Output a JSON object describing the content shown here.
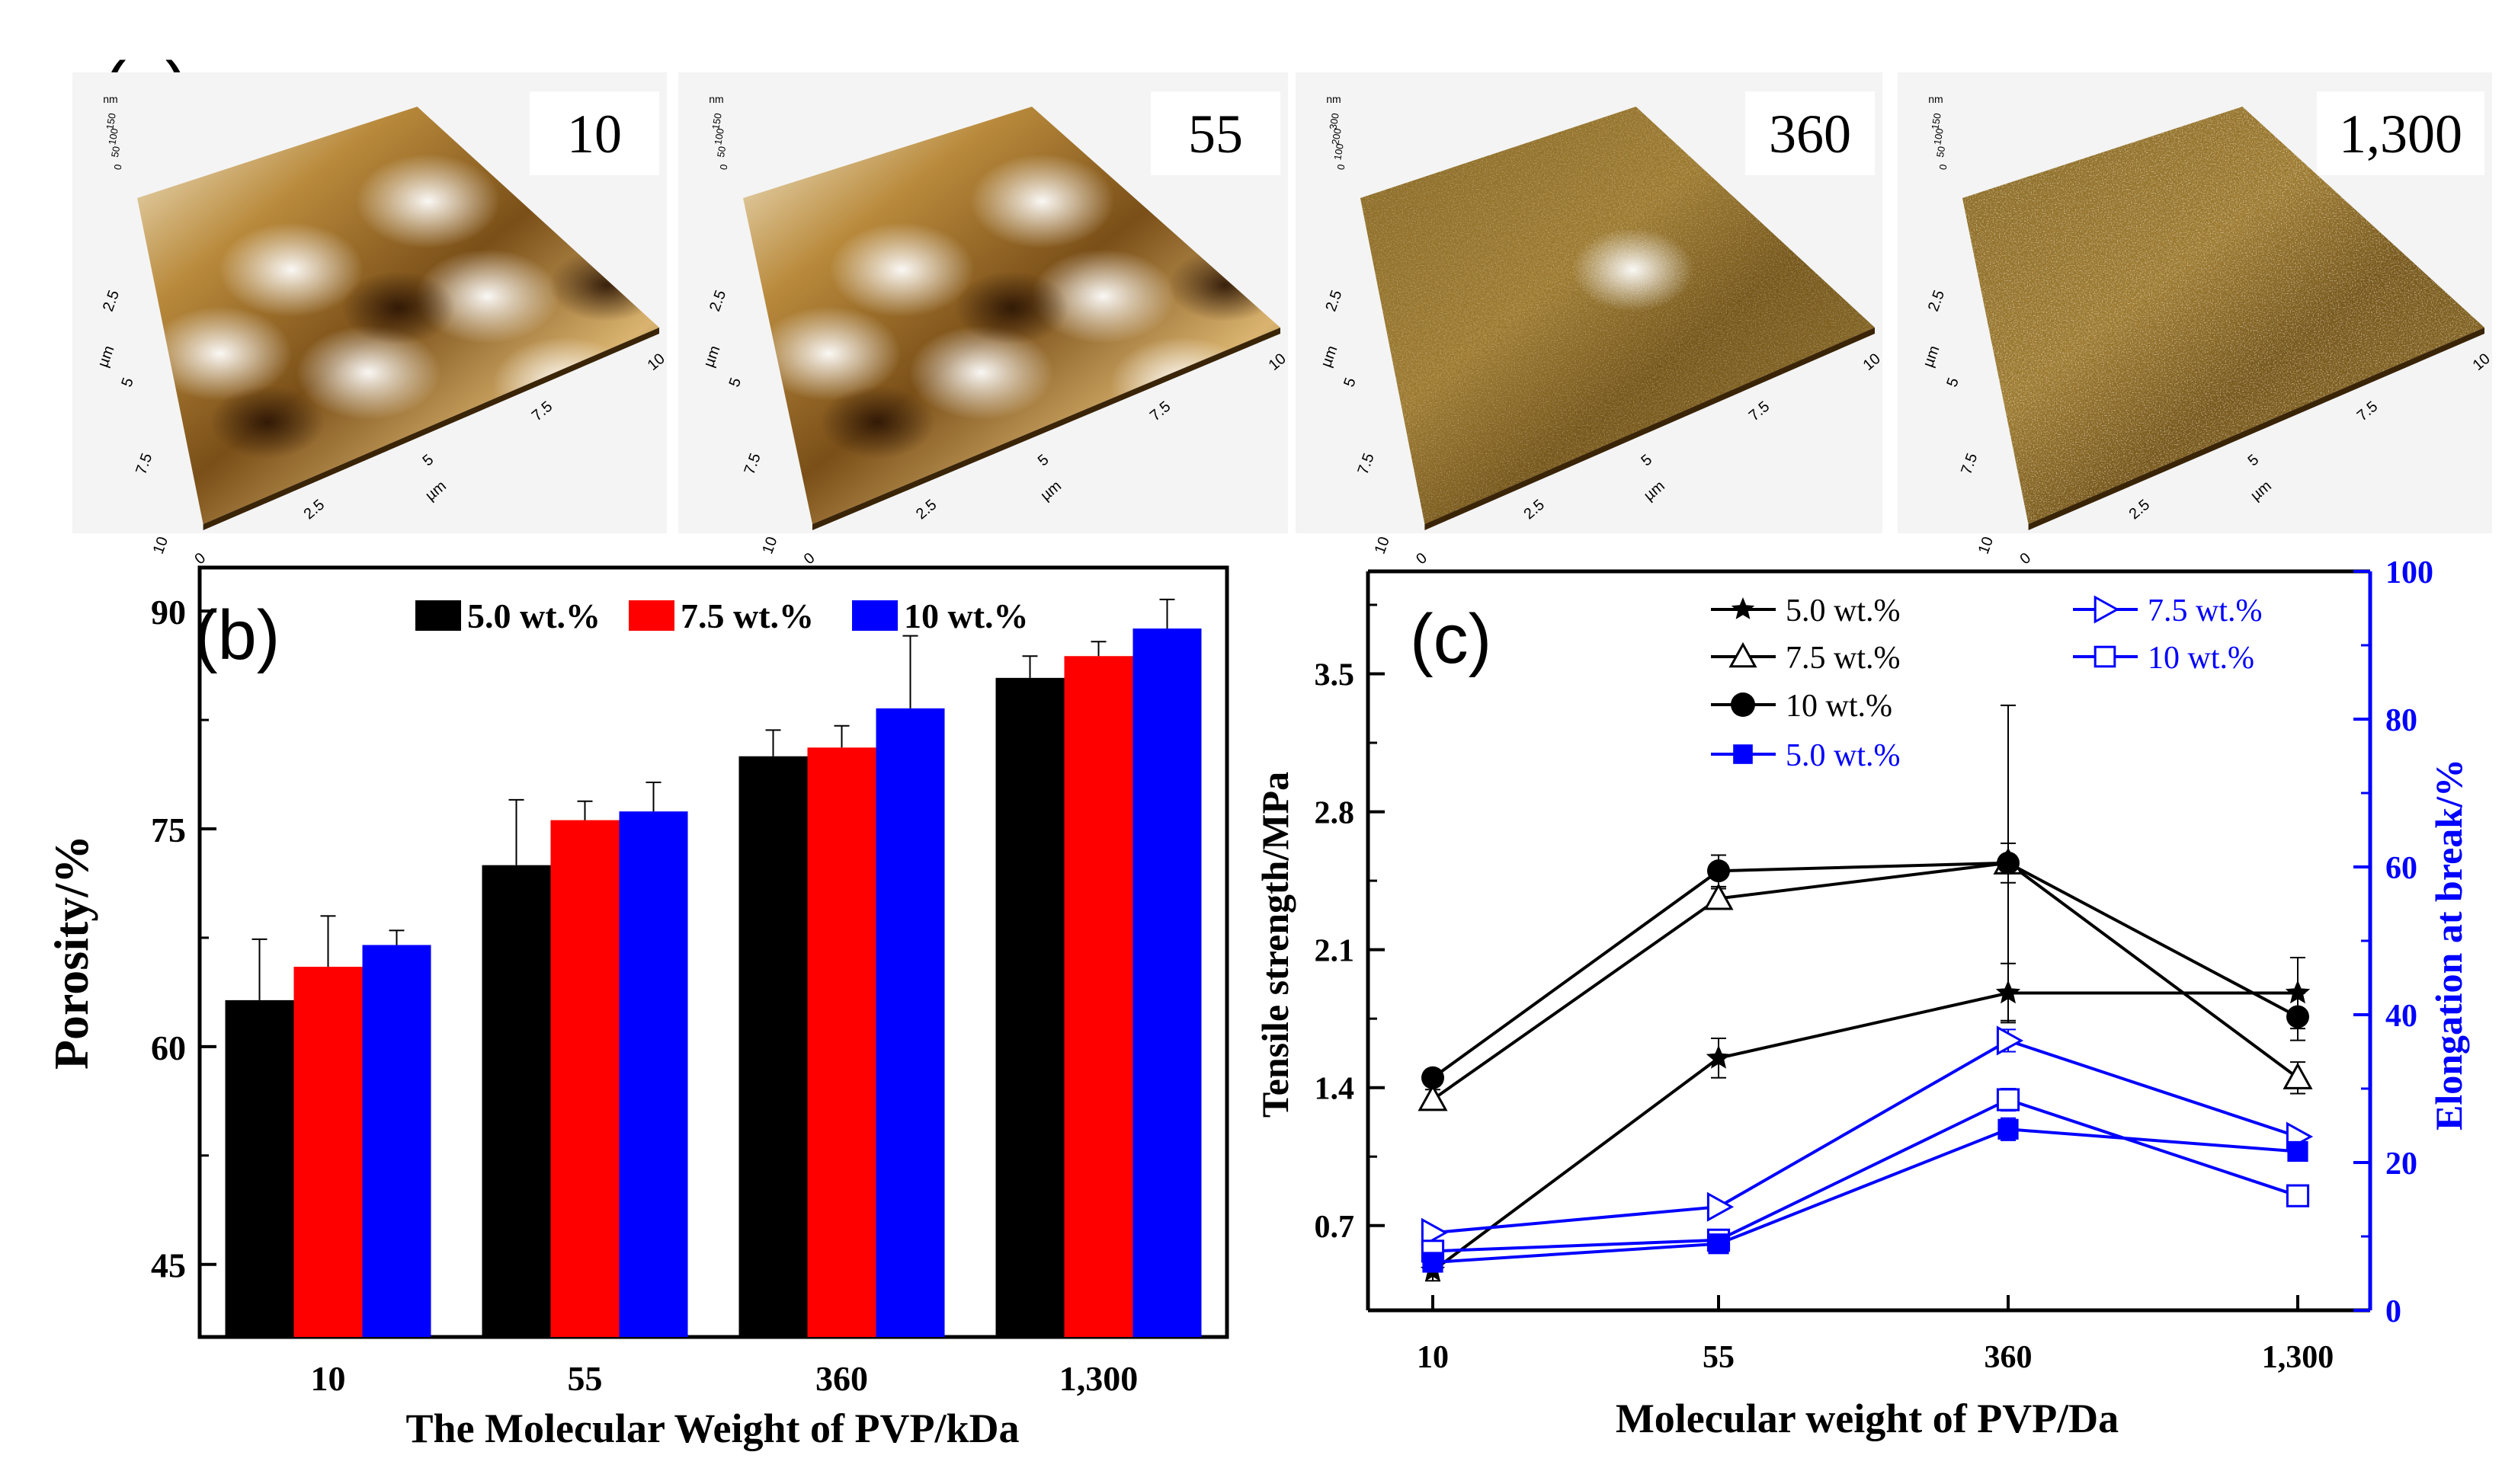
{
  "figure": {
    "panel_a": {
      "label": "(a)",
      "tiles": [
        {
          "mw_label": "10",
          "z_unit": "nm",
          "z_ticks": [
            "150",
            "100",
            "50",
            "0"
          ]
        },
        {
          "mw_label": "55",
          "z_unit": "nm",
          "z_ticks": [
            "150",
            "100",
            "50",
            "0"
          ]
        },
        {
          "mw_label": "360",
          "z_unit": "nm",
          "z_ticks": [
            "300",
            "200",
            "100",
            "0"
          ]
        },
        {
          "mw_label": "1,300",
          "z_unit": "nm",
          "z_ticks": [
            "150",
            "100",
            "50",
            "0"
          ]
        }
      ],
      "axis_unit": "µm",
      "axis_ticks": [
        "0",
        "2.5",
        "5",
        "7.5",
        "10"
      ]
    }
  },
  "chart_data": [
    {
      "panel": "(b)",
      "type": "bar",
      "title": "",
      "xlabel": "The Molecular Weight of PVP/kDa",
      "ylabel": "Porosity/%",
      "categories": [
        "10",
        "55",
        "360",
        "1,300"
      ],
      "ylim": [
        40,
        93
      ],
      "yticks": [
        45,
        60,
        75,
        90
      ],
      "legend_position": "top-center",
      "series": [
        {
          "name": "5.0 wt.%",
          "color": "#000000",
          "values": [
            63.2,
            72.5,
            80.0,
            85.4
          ],
          "errors": [
            4.2,
            4.5,
            1.8,
            1.5
          ]
        },
        {
          "name": "7.5 wt.%",
          "color": "#ff0000",
          "values": [
            65.5,
            75.6,
            80.6,
            86.9
          ],
          "errors": [
            3.5,
            1.3,
            1.5,
            1.0
          ]
        },
        {
          "name": "10 wt.%",
          "color": "#0000ff",
          "values": [
            67.0,
            76.2,
            83.3,
            88.8
          ],
          "errors": [
            1.0,
            2.0,
            5.0,
            2.0
          ]
        }
      ]
    },
    {
      "panel": "(c)",
      "type": "line",
      "title": "",
      "xlabel": "Molecular weight of PVP/Da",
      "ylabel": "Tensile strength/MPa",
      "y2label": "Elongation at break/%",
      "categories": [
        "10",
        "55",
        "360",
        "1,300"
      ],
      "ylim": [
        0.27,
        4.02
      ],
      "yticks": [
        0.7,
        1.4,
        2.1,
        2.8,
        3.5
      ],
      "y2lim": [
        0,
        100
      ],
      "y2ticks": [
        0,
        20,
        40,
        60,
        80,
        100
      ],
      "legend_position": "top",
      "series": [
        {
          "name": "5.0 wt.%",
          "axis": "left",
          "color": "#000000",
          "marker": "star",
          "values": [
            0.47,
            1.55,
            1.88,
            1.88
          ],
          "errors": [
            0.05,
            0.1,
            0.15,
            0.18
          ]
        },
        {
          "name": "7.5 wt.%",
          "axis": "left",
          "color": "#000000",
          "marker": "triangle-up-open",
          "values": [
            1.34,
            2.36,
            2.54,
            1.45
          ],
          "errors": [
            0.05,
            0.05,
            0.1,
            0.08
          ]
        },
        {
          "name": "10 wt.%",
          "axis": "left",
          "color": "#000000",
          "marker": "circle-filled",
          "values": [
            1.45,
            2.5,
            2.54,
            1.76
          ],
          "errors": [
            0.04,
            0.08,
            0.8,
            0.12
          ]
        },
        {
          "name": "7.5 wt.%",
          "axis": "right",
          "color": "#0000ff",
          "marker": "triangle-right-open",
          "values": [
            10.5,
            14,
            36.5,
            23.5
          ],
          "errors": [
            0,
            0,
            1.5,
            0
          ]
        },
        {
          "name": "10 wt.%",
          "axis": "right",
          "color": "#0000ff",
          "marker": "square-open",
          "values": [
            8,
            9.5,
            28.5,
            15.5
          ],
          "errors": [
            0,
            0,
            1.5,
            0
          ]
        },
        {
          "name": "5.0 wt.%",
          "axis": "right",
          "color": "#0000ff",
          "marker": "square-filled",
          "values": [
            6.5,
            9,
            24.5,
            21.5
          ],
          "errors": [
            0,
            0,
            1.5,
            0
          ]
        }
      ]
    }
  ]
}
